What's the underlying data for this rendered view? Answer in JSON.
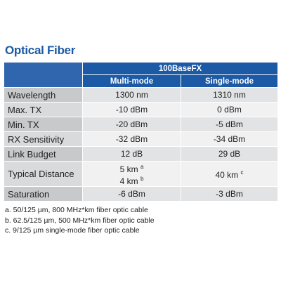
{
  "title": "Optical Fiber",
  "table": {
    "group_header": "100BaseFX",
    "columns": [
      "Multi-mode",
      "Single-mode"
    ],
    "rows": [
      {
        "label": "Wavelength",
        "cells": [
          [
            {
              "text": "1300 nm"
            }
          ],
          [
            {
              "text": "1310 nm"
            }
          ]
        ]
      },
      {
        "label": "Max. TX",
        "cells": [
          [
            {
              "text": "-10 dBm"
            }
          ],
          [
            {
              "text": "0 dBm"
            }
          ]
        ]
      },
      {
        "label": "Min. TX",
        "cells": [
          [
            {
              "text": "-20 dBm"
            }
          ],
          [
            {
              "text": "-5 dBm"
            }
          ]
        ]
      },
      {
        "label": "RX Sensitivity",
        "cells": [
          [
            {
              "text": "-32 dBm"
            }
          ],
          [
            {
              "text": "-34 dBm"
            }
          ]
        ]
      },
      {
        "label": "Link Budget",
        "cells": [
          [
            {
              "text": "12 dB"
            }
          ],
          [
            {
              "text": "29 dB"
            }
          ]
        ]
      },
      {
        "label": "Typical Distance",
        "cells": [
          [
            {
              "text": "5 km",
              "sup": "a"
            },
            {
              "text": "4 km",
              "sup": "b"
            }
          ],
          [
            {
              "text": "40 km",
              "sup": "c"
            }
          ]
        ]
      },
      {
        "label": "Saturation",
        "cells": [
          [
            {
              "text": "-6 dBm"
            }
          ],
          [
            {
              "text": "-3 dBm"
            }
          ]
        ]
      }
    ]
  },
  "footnotes": [
    "a. 50/125 µm, 800 MHz*km fiber optic cable",
    "b. 62.5/125 µm, 500 MHz*km fiber optic cable",
    "c. 9/125 µm single-mode fiber optic cable"
  ]
}
